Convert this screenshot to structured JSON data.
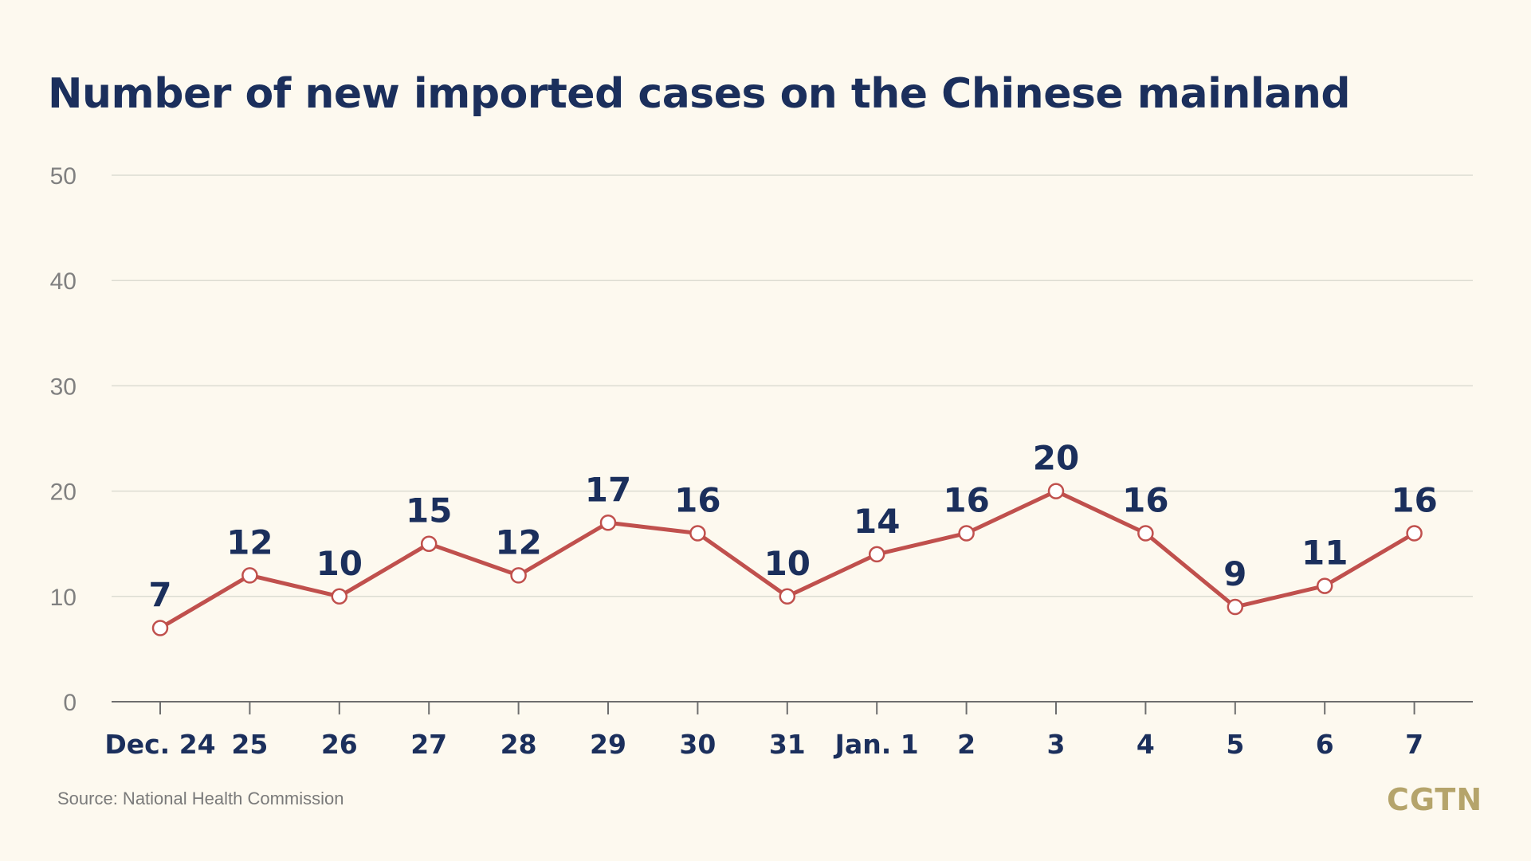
{
  "title": "Number of new imported cases on the Chinese mainland",
  "source": "Source: National Health Commission",
  "logo": "CGTN",
  "colors": {
    "background": "#fdf9ef",
    "title": "#1b2f5c",
    "line": "#c0504d",
    "grid": "#dcdcd2",
    "logo": "#b5a46b"
  },
  "chart_data": {
    "type": "line",
    "title": "Number of new imported cases on the Chinese mainland",
    "xlabel": "",
    "ylabel": "",
    "categories": [
      "Dec. 24",
      "25",
      "26",
      "27",
      "28",
      "29",
      "30",
      "31",
      "Jan. 1",
      "2",
      "3",
      "4",
      "5",
      "6",
      "7"
    ],
    "series": [
      {
        "values": [
          7,
          12,
          10,
          15,
          12,
          17,
          16,
          10,
          14,
          16,
          20,
          16,
          9,
          11,
          16
        ]
      }
    ],
    "ylim": [
      0,
      50
    ],
    "yticks": [
      0,
      10,
      20,
      30,
      40,
      50
    ],
    "grid": true,
    "legend": "none"
  }
}
